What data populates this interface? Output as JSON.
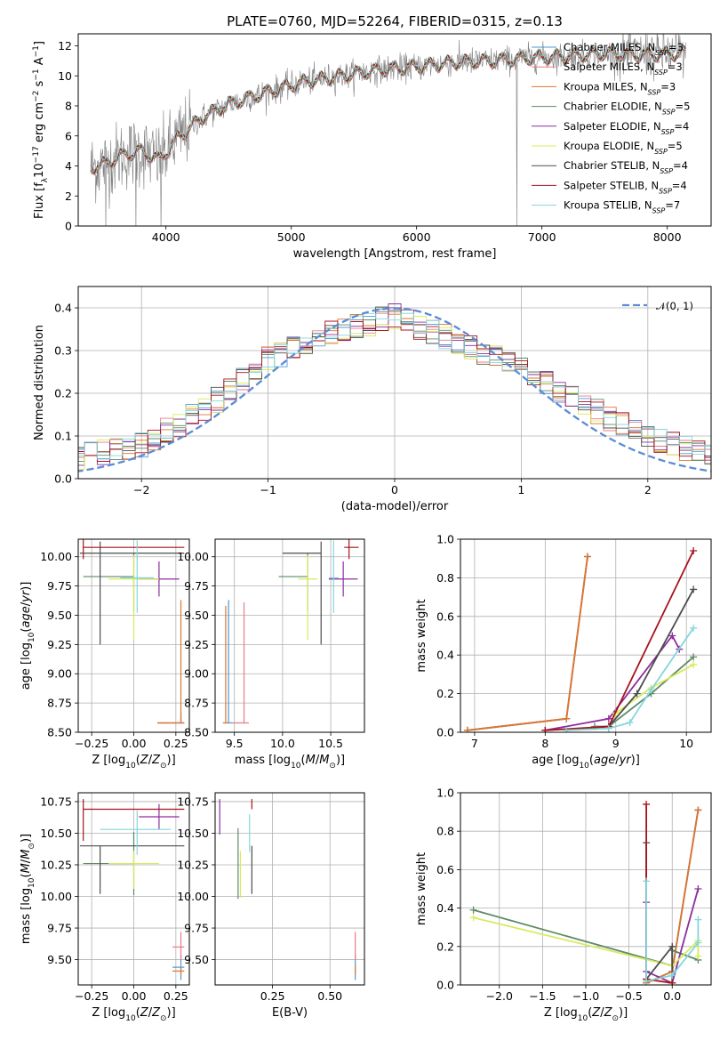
{
  "figure": {
    "title": "PLATE=0760, MJD=52264, FIBERID=0315, z=0.13"
  },
  "chart_data": [
    {
      "id": "spectrum",
      "type": "line",
      "title": "PLATE=0760, MJD=52264, FIBERID=0315, z=0.13",
      "xlabel": "wavelength [Angstrom, rest frame]",
      "ylabel": "Flux [fλ10⁻¹⁷ erg cm⁻² s⁻¹ A⁻¹]",
      "xlim": [
        3300,
        8350
      ],
      "ylim": [
        0,
        12.8
      ],
      "xticks": [
        4000,
        5000,
        6000,
        7000,
        8000
      ],
      "yticks": [
        0,
        2,
        4,
        6,
        8,
        10,
        12
      ],
      "grid": false,
      "legend_position": "top-right",
      "data_series": {
        "name": "data",
        "color": "#808080"
      },
      "model_anchors": {
        "x": [
          3400,
          3500,
          3650,
          3800,
          3950,
          4100,
          4300,
          4500,
          4800,
          5100,
          5400,
          5700,
          6000,
          6300,
          6600,
          6900,
          7200,
          7500,
          7800,
          8150
        ],
        "y": [
          3.9,
          4.1,
          4.7,
          5.0,
          4.4,
          5.9,
          7.3,
          8.1,
          8.9,
          9.6,
          10.0,
          10.4,
          10.6,
          10.9,
          11.0,
          11.2,
          11.3,
          11.5,
          11.4,
          11.5
        ]
      },
      "series": [
        {
          "name": "Chabrier MILES, N$_{SSP}$=3",
          "color": "#4f97d3"
        },
        {
          "name": "Salpeter MILES, N$_{SSP}$=3",
          "color": "#e87b8a"
        },
        {
          "name": "Kroupa MILES, N$_{SSP}$=3",
          "color": "#d8772f"
        },
        {
          "name": "Chabrier ELODIE, N$_{SSP}$=5",
          "color": "#5e8a66"
        },
        {
          "name": "Salpeter ELODIE, N$_{SSP}$=4",
          "color": "#8c2d9e"
        },
        {
          "name": "Kroupa ELODIE, N$_{SSP}$=5",
          "color": "#d8ea5b"
        },
        {
          "name": "Chabrier STELIB, N$_{SSP}$=4",
          "color": "#4d4d4d"
        },
        {
          "name": "Salpeter STELIB, N$_{SSP}$=4",
          "color": "#a8121c"
        },
        {
          "name": "Kroupa STELIB, N$_{SSP}$=7",
          "color": "#84d6dc"
        }
      ],
      "legend": [
        "Chabrier MILES, N_SSP=3",
        "Salpeter MILES, N_SSP=3",
        "Kroupa MILES, N_SSP=3",
        "Chabrier ELODIE, N_SSP=5",
        "Salpeter ELODIE, N_SSP=4",
        "Kroupa ELODIE, N_SSP=5",
        "Chabrier STELIB, N_SSP=4",
        "Salpeter STELIB, N_SSP=4",
        "Kroupa STELIB, N_SSP=7"
      ]
    },
    {
      "id": "residuals",
      "type": "histogram",
      "xlabel": "(data-model)/error",
      "ylabel": "Normed distribution",
      "xlim": [
        -2.5,
        2.5
      ],
      "ylim": [
        0,
        0.45
      ],
      "xticks": [
        -2,
        -1,
        0,
        1,
        2
      ],
      "yticks": [
        0.0,
        0.1,
        0.2,
        0.3,
        0.4
      ],
      "grid": true,
      "legend_position": "top-right",
      "legend": [
        "𝒩(0, 1)"
      ],
      "normal_curve": {
        "mean": 0,
        "std": 1,
        "color": "#5b8bd5"
      },
      "bin_width": 0.1,
      "approx_bin_profile": {
        "x": [
          -2.5,
          -2.0,
          -1.5,
          -1.0,
          -0.5,
          0.0,
          0.5,
          1.0,
          1.5,
          2.0,
          2.5
        ],
        "y": [
          0.05,
          0.08,
          0.16,
          0.28,
          0.34,
          0.38,
          0.32,
          0.26,
          0.17,
          0.1,
          0.05
        ]
      }
    },
    {
      "id": "age-vs-z",
      "type": "errorbar",
      "xlabel": "Z [log₁₀(Z/Z⊙)]",
      "ylabel": "age  [log₁₀(age/yr)]",
      "xlim": [
        -0.33,
        0.33
      ],
      "ylim": [
        8.5,
        10.15
      ],
      "xticks": [
        -0.25,
        0.0,
        0.25
      ],
      "yticks": [
        8.5,
        8.75,
        9.0,
        9.25,
        9.5,
        9.75,
        10.0
      ],
      "grid": true,
      "points": [
        {
          "series": 0,
          "x": 0.28,
          "xerr": [
            0.14,
            0.02
          ],
          "y": 8.58,
          "yerr": [
            0.0,
            0.1
          ]
        },
        {
          "series": 1,
          "x": 0.28,
          "xerr": [
            0.14,
            0.02
          ],
          "y": 8.58,
          "yerr": [
            0.0,
            0.05
          ]
        },
        {
          "series": 2,
          "x": 0.28,
          "xerr": [
            0.14,
            0.02
          ],
          "y": 8.58,
          "yerr": [
            0.0,
            1.05
          ]
        },
        {
          "series": 3,
          "x": 0.0,
          "xerr": [
            0.3,
            0.0
          ],
          "y": 9.83,
          "yerr": [
            0.3,
            0.2
          ]
        },
        {
          "series": 4,
          "x": 0.15,
          "xerr": [
            0.12,
            0.12
          ],
          "y": 9.81,
          "yerr": [
            0.15,
            0.15
          ]
        },
        {
          "series": 5,
          "x": 0.0,
          "xerr": [
            0.15,
            0.15
          ],
          "y": 9.81,
          "yerr": [
            0.52,
            0.2
          ]
        },
        {
          "series": 6,
          "x": -0.2,
          "xerr": [
            0.12,
            0.5
          ],
          "y": 10.03,
          "yerr": [
            0.78,
            0.1
          ]
        },
        {
          "series": 7,
          "x": -0.3,
          "xerr": [
            0.0,
            0.6
          ],
          "y": 10.08,
          "yerr": [
            0.1,
            0.1
          ]
        },
        {
          "series": 8,
          "x": 0.02,
          "xerr": [
            0.1,
            0.1
          ],
          "y": 9.82,
          "yerr": [
            0.3,
            0.32
          ]
        }
      ]
    },
    {
      "id": "age-vs-mass",
      "type": "errorbar",
      "xlabel": "mass [log₁₀(M/M⊙)]",
      "ylabel": "",
      "xlim": [
        9.3,
        10.85
      ],
      "ylim": [
        8.5,
        10.15
      ],
      "xticks": [
        9.5,
        10.0,
        10.5
      ],
      "yticks": [
        8.5,
        8.75,
        9.0,
        9.25,
        9.5,
        9.75,
        10.0
      ],
      "grid": true,
      "points": [
        {
          "series": 0,
          "x": 9.44,
          "xerr": [
            0.04,
            0.04
          ],
          "y": 8.58,
          "yerr": [
            0.0,
            1.05
          ]
        },
        {
          "series": 1,
          "x": 9.6,
          "xerr": [
            0.12,
            0.05
          ],
          "y": 8.58,
          "yerr": [
            0.0,
            1.03
          ]
        },
        {
          "series": 2,
          "x": 9.41,
          "xerr": [
            0.03,
            0.03
          ],
          "y": 8.58,
          "yerr": [
            0.0,
            1.0
          ]
        },
        {
          "series": 3,
          "x": 10.26,
          "xerr": [
            0.3,
            0.0
          ],
          "y": 9.83,
          "yerr": [
            0.3,
            0.2
          ]
        },
        {
          "series": 4,
          "x": 10.63,
          "xerr": [
            0.15,
            0.15
          ],
          "y": 9.81,
          "yerr": [
            0.15,
            0.15
          ]
        },
        {
          "series": 5,
          "x": 10.26,
          "xerr": [
            0.1,
            0.1
          ],
          "y": 9.81,
          "yerr": [
            0.52,
            0.2
          ]
        },
        {
          "series": 6,
          "x": 10.4,
          "xerr": [
            0.4,
            0.0
          ],
          "y": 10.03,
          "yerr": [
            0.78,
            0.1
          ]
        },
        {
          "series": 7,
          "x": 10.69,
          "xerr": [
            0.05,
            0.1
          ],
          "y": 10.08,
          "yerr": [
            0.1,
            0.1
          ]
        },
        {
          "series": 8,
          "x": 10.53,
          "xerr": [
            0.05,
            0.05
          ],
          "y": 9.82,
          "yerr": [
            0.3,
            0.32
          ]
        }
      ]
    },
    {
      "id": "weight-vs-age",
      "type": "line",
      "xlabel": "age  [log₁₀(age/yr)]",
      "ylabel": "mass weight",
      "xlim": [
        6.8,
        10.35
      ],
      "ylim": [
        0,
        1.0
      ],
      "xticks": [
        7,
        8,
        9,
        10
      ],
      "yticks": [
        0.0,
        0.2,
        0.4,
        0.6,
        0.8,
        1.0
      ],
      "grid": true,
      "series_points": [
        {
          "series": 0,
          "x": [
            6.9,
            8.3,
            8.6
          ],
          "y": [
            0.01,
            0.07,
            0.91
          ]
        },
        {
          "series": 1,
          "x": [
            6.9,
            8.3,
            8.6
          ],
          "y": [
            0.01,
            0.07,
            0.91
          ]
        },
        {
          "series": 2,
          "x": [
            6.9,
            8.3,
            8.6
          ],
          "y": [
            0.01,
            0.07,
            0.91
          ]
        },
        {
          "series": 3,
          "x": [
            8.7,
            8.9,
            9.5,
            10.1
          ],
          "y": [
            0.03,
            0.03,
            0.2,
            0.39
          ]
        },
        {
          "series": 4,
          "x": [
            8.0,
            8.9,
            9.8,
            9.9
          ],
          "y": [
            0.01,
            0.07,
            0.5,
            0.43
          ]
        },
        {
          "series": 5,
          "x": [
            8.9,
            9.0,
            9.5,
            10.1
          ],
          "y": [
            0.02,
            0.1,
            0.23,
            0.35
          ]
        },
        {
          "series": 6,
          "x": [
            8.3,
            8.9,
            9.3,
            10.1
          ],
          "y": [
            0.01,
            0.03,
            0.2,
            0.74
          ]
        },
        {
          "series": 7,
          "x": [
            8.0,
            8.9,
            10.1
          ],
          "y": [
            0.01,
            0.03,
            0.94
          ]
        },
        {
          "series": 8,
          "x": [
            8.3,
            8.9,
            9.2,
            9.5,
            10.1
          ],
          "y": [
            0.01,
            0.02,
            0.05,
            0.22,
            0.54
          ]
        }
      ]
    },
    {
      "id": "mass-vs-z",
      "type": "errorbar",
      "xlabel": "Z [log₁₀(Z/Z⊙)]",
      "ylabel": "mass [log₁₀(M/M⊙)]",
      "xlim": [
        -0.33,
        0.33
      ],
      "ylim": [
        9.3,
        10.82
      ],
      "xticks": [
        -0.25,
        0.0,
        0.25
      ],
      "yticks": [
        9.5,
        9.75,
        10.0,
        10.25,
        10.5,
        10.75
      ],
      "grid": true,
      "points": [
        {
          "series": 0,
          "x": 0.28,
          "xerr": [
            0.05,
            0.02
          ],
          "y": 9.44,
          "yerr": [
            0.1,
            0.1
          ]
        },
        {
          "series": 1,
          "x": 0.28,
          "xerr": [
            0.05,
            0.02
          ],
          "y": 9.6,
          "yerr": [
            0.1,
            0.12
          ]
        },
        {
          "series": 2,
          "x": 0.28,
          "xerr": [
            0.05,
            0.02
          ],
          "y": 9.41,
          "yerr": [
            0.03,
            0.03
          ]
        },
        {
          "series": 3,
          "x": 0.0,
          "xerr": [
            0.3,
            0.0
          ],
          "y": 10.26,
          "yerr": [
            0.25,
            0.25
          ]
        },
        {
          "series": 4,
          "x": 0.15,
          "xerr": [
            0.12,
            0.12
          ],
          "y": 10.63,
          "yerr": [
            0.1,
            0.1
          ]
        },
        {
          "series": 5,
          "x": 0.0,
          "xerr": [
            0.15,
            0.15
          ],
          "y": 10.26,
          "yerr": [
            0.2,
            0.1
          ]
        },
        {
          "series": 6,
          "x": -0.2,
          "xerr": [
            0.12,
            0.5
          ],
          "y": 10.4,
          "yerr": [
            0.38,
            0.0
          ]
        },
        {
          "series": 7,
          "x": -0.3,
          "xerr": [
            0.0,
            0.6
          ],
          "y": 10.69,
          "yerr": [
            0.25,
            0.08
          ]
        },
        {
          "series": 8,
          "x": 0.02,
          "xerr": [
            0.22,
            0.2
          ],
          "y": 10.53,
          "yerr": [
            0.2,
            0.15
          ]
        }
      ]
    },
    {
      "id": "mass-vs-ebv",
      "type": "errorbar",
      "xlabel": "E(B-V)",
      "ylabel": "",
      "xlim": [
        0.0,
        0.65
      ],
      "ylim": [
        9.3,
        10.82
      ],
      "xticks": [
        0.25,
        0.5
      ],
      "yticks": [
        9.5,
        9.75,
        10.0,
        10.25,
        10.5,
        10.75
      ],
      "grid": true,
      "points": [
        {
          "series": 0,
          "x": 0.61,
          "xerr": [
            0,
            0
          ],
          "y": 9.44,
          "yerr": [
            0.1,
            0.1
          ]
        },
        {
          "series": 1,
          "x": 0.61,
          "xerr": [
            0,
            0
          ],
          "y": 9.6,
          "yerr": [
            0.1,
            0.12
          ]
        },
        {
          "series": 2,
          "x": 0.61,
          "xerr": [
            0,
            0
          ],
          "y": 9.41,
          "yerr": [
            0.03,
            0.05
          ]
        },
        {
          "series": 3,
          "x": 0.1,
          "xerr": [
            0,
            0
          ],
          "y": 10.26,
          "yerr": [
            0.28,
            0.28
          ]
        },
        {
          "series": 4,
          "x": 0.02,
          "xerr": [
            0,
            0
          ],
          "y": 10.63,
          "yerr": [
            0.14,
            0.14
          ]
        },
        {
          "series": 5,
          "x": 0.11,
          "xerr": [
            0,
            0
          ],
          "y": 10.26,
          "yerr": [
            0.27,
            0.1
          ]
        },
        {
          "series": 6,
          "x": 0.16,
          "xerr": [
            0,
            0
          ],
          "y": 10.4,
          "yerr": [
            0.38,
            0.0
          ]
        },
        {
          "series": 7,
          "x": 0.16,
          "xerr": [
            0,
            0
          ],
          "y": 10.69,
          "yerr": [
            0.0,
            0.08
          ]
        },
        {
          "series": 8,
          "x": 0.15,
          "xerr": [
            0,
            0
          ],
          "y": 10.53,
          "yerr": [
            0.18,
            0.12
          ]
        }
      ]
    },
    {
      "id": "weight-vs-z",
      "type": "line",
      "xlabel": "Z [log₁₀(Z/Z⊙)]",
      "ylabel": "mass weight",
      "xlim": [
        -2.45,
        0.45
      ],
      "ylim": [
        0,
        1.0
      ],
      "xticks": [
        -2.0,
        -1.5,
        -1.0,
        -0.5,
        0.0
      ],
      "yticks": [
        0.0,
        0.2,
        0.4,
        0.6,
        0.8,
        1.0
      ],
      "grid": true,
      "series_points": [
        {
          "series": 0,
          "x": [
            -0.3,
            0.0,
            0.3
          ],
          "y": [
            0.01,
            0.07,
            0.91
          ]
        },
        {
          "series": 1,
          "x": [
            -0.3,
            0.0,
            0.3
          ],
          "y": [
            0.01,
            0.07,
            0.91
          ]
        },
        {
          "series": 2,
          "x": [
            -0.3,
            0.0,
            0.3
          ],
          "y": [
            0.01,
            0.07,
            0.91
          ]
        },
        {
          "series": 3,
          "x": [
            -2.3,
            0.0,
            0.0,
            0.3
          ],
          "y": [
            0.39,
            0.1,
            0.18,
            0.13
          ]
        },
        {
          "series": 4,
          "x": [
            -0.3,
            -0.3,
            0.0,
            0.3
          ],
          "y": [
            0.43,
            0.07,
            0.01,
            0.5
          ]
        },
        {
          "series": 5,
          "x": [
            -2.3,
            0.0,
            0.3,
            0.3
          ],
          "y": [
            0.35,
            0.1,
            0.23,
            0.15
          ]
        },
        {
          "series": 6,
          "x": [
            -0.3,
            -0.3,
            0.0,
            0.0
          ],
          "y": [
            0.74,
            0.03,
            0.2,
            0.01
          ]
        },
        {
          "series": 7,
          "x": [
            -0.3,
            -0.3,
            0.0
          ],
          "y": [
            0.94,
            0.03,
            0.01
          ]
        },
        {
          "series": 8,
          "x": [
            -0.3,
            -0.3,
            0.0,
            0.3,
            0.3
          ],
          "y": [
            0.54,
            0.02,
            0.05,
            0.22,
            0.34
          ]
        }
      ]
    }
  ]
}
